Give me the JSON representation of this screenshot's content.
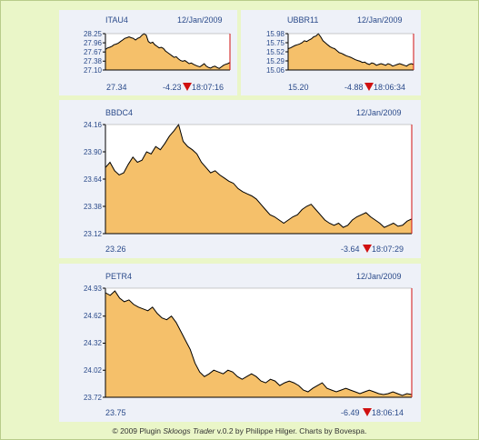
{
  "footer": {
    "pre": "© 2009 Plugin ",
    "name": "Skloogs Trader",
    "post": " v.0.2 by Philippe Hilger. Charts by Bovespa."
  },
  "colors": {
    "fill": "#f5c06a",
    "line": "#000000",
    "accent": "#d01010",
    "text": "#2a4a8a"
  },
  "chart_data": [
    {
      "type": "area",
      "title": "ITAU4",
      "date": "12/Jan/2009",
      "yticks": [
        "28.25",
        "27.96",
        "27.67",
        "27.38",
        "27.10"
      ],
      "ylim": [
        27.1,
        28.25
      ],
      "last": "27.34",
      "change": "-4.23",
      "time": "18:07:16",
      "direction": "down",
      "values": [
        27.75,
        27.8,
        27.82,
        27.85,
        27.9,
        27.92,
        27.95,
        28.0,
        28.05,
        28.1,
        28.12,
        28.15,
        28.12,
        28.1,
        28.05,
        28.1,
        28.13,
        28.2,
        28.25,
        28.2,
        28.0,
        27.95,
        27.98,
        27.9,
        27.85,
        27.8,
        27.82,
        27.78,
        27.7,
        27.65,
        27.6,
        27.55,
        27.5,
        27.52,
        27.45,
        27.4,
        27.38,
        27.4,
        27.35,
        27.3,
        27.32,
        27.28,
        27.25,
        27.22,
        27.2,
        27.25,
        27.3,
        27.22,
        27.18,
        27.16,
        27.2,
        27.22,
        27.18,
        27.15,
        27.2,
        27.25,
        27.28,
        27.3,
        27.34
      ]
    },
    {
      "type": "area",
      "title": "UBBR11",
      "date": "12/Jan/2009",
      "yticks": [
        "15.98",
        "15.75",
        "15.52",
        "15.29",
        "15.06"
      ],
      "ylim": [
        15.06,
        15.98
      ],
      "last": "15.20",
      "change": "-4.88",
      "time": "18:06:34",
      "direction": "down",
      "values": [
        15.6,
        15.62,
        15.65,
        15.68,
        15.7,
        15.72,
        15.75,
        15.8,
        15.78,
        15.82,
        15.85,
        15.9,
        15.92,
        15.98,
        15.9,
        15.8,
        15.75,
        15.7,
        15.65,
        15.62,
        15.6,
        15.55,
        15.5,
        15.48,
        15.45,
        15.42,
        15.4,
        15.38,
        15.35,
        15.32,
        15.3,
        15.28,
        15.25,
        15.26,
        15.22,
        15.2,
        15.24,
        15.22,
        15.18,
        15.2,
        15.22,
        15.2,
        15.18,
        15.22,
        15.2,
        15.16,
        15.18,
        15.2,
        15.22,
        15.2,
        15.18,
        15.16,
        15.2,
        15.22,
        15.2
      ]
    },
    {
      "type": "area",
      "title": "BBDC4",
      "date": "12/Jan/2009",
      "yticks": [
        "24.16",
        "23.90",
        "23.64",
        "23.38",
        "23.12"
      ],
      "ylim": [
        23.12,
        24.16
      ],
      "last": "23.26",
      "change": "-3.64",
      "time": "18:07:29",
      "direction": "down",
      "values": [
        23.75,
        23.8,
        23.72,
        23.68,
        23.7,
        23.78,
        23.85,
        23.8,
        23.82,
        23.9,
        23.88,
        23.95,
        23.92,
        23.98,
        24.05,
        24.1,
        24.16,
        24.0,
        23.95,
        23.92,
        23.88,
        23.8,
        23.75,
        23.7,
        23.72,
        23.68,
        23.65,
        23.62,
        23.6,
        23.55,
        23.52,
        23.5,
        23.48,
        23.45,
        23.4,
        23.35,
        23.3,
        23.28,
        23.25,
        23.22,
        23.25,
        23.28,
        23.3,
        23.35,
        23.38,
        23.4,
        23.35,
        23.3,
        23.25,
        23.22,
        23.2,
        23.22,
        23.18,
        23.2,
        23.25,
        23.28,
        23.3,
        23.32,
        23.28,
        23.25,
        23.22,
        23.18,
        23.2,
        23.22,
        23.19,
        23.2,
        23.24,
        23.26
      ]
    },
    {
      "type": "area",
      "title": "PETR4",
      "date": "12/Jan/2009",
      "yticks": [
        "24.93",
        "24.62",
        "24.32",
        "24.02",
        "23.72"
      ],
      "ylim": [
        23.72,
        24.93
      ],
      "last": "23.75",
      "change": "-6.49",
      "time": "18:06:14",
      "direction": "down",
      "values": [
        24.88,
        24.85,
        24.9,
        24.82,
        24.78,
        24.8,
        24.75,
        24.72,
        24.7,
        24.68,
        24.72,
        24.65,
        24.6,
        24.58,
        24.62,
        24.55,
        24.45,
        24.35,
        24.25,
        24.1,
        24.0,
        23.95,
        23.98,
        24.02,
        24.0,
        23.98,
        24.02,
        24.0,
        23.95,
        23.92,
        23.95,
        23.98,
        23.95,
        23.9,
        23.88,
        23.92,
        23.9,
        23.85,
        23.88,
        23.9,
        23.88,
        23.85,
        23.8,
        23.78,
        23.82,
        23.85,
        23.88,
        23.82,
        23.8,
        23.78,
        23.8,
        23.82,
        23.8,
        23.78,
        23.76,
        23.78,
        23.8,
        23.78,
        23.76,
        23.75,
        23.76,
        23.78,
        23.76,
        23.74,
        23.76,
        23.75
      ]
    }
  ]
}
